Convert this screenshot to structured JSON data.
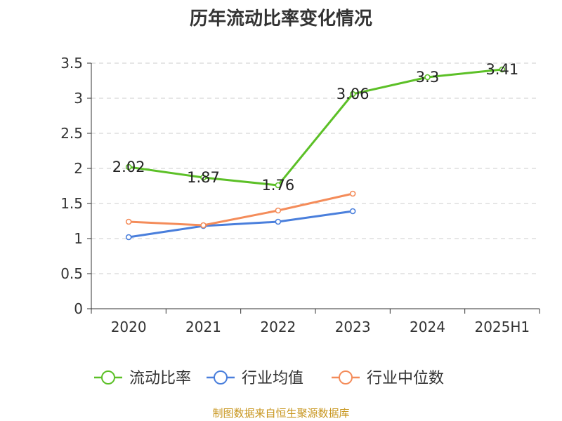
{
  "title": "历年流动比率变化情况",
  "source": "制图数据来自恒生聚源数据库",
  "chart_data": {
    "type": "line",
    "title": "历年流动比率变化情况",
    "categories": [
      "2020",
      "2021",
      "2022",
      "2023",
      "2024",
      "2025H1"
    ],
    "ylim": [
      0,
      3.5
    ],
    "yticks": [
      0,
      0.5,
      1,
      1.5,
      2,
      2.5,
      3,
      3.5
    ],
    "ytick_labels": [
      "0",
      "0.5",
      "1",
      "1.5",
      "2",
      "2.5",
      "3",
      "3.5"
    ],
    "grid": true,
    "legend_position": "bottom",
    "series": [
      {
        "name": "流动比率",
        "color": "#5cc027",
        "values": [
          2.02,
          1.87,
          1.76,
          3.06,
          3.3,
          3.41
        ],
        "labels": [
          "2.02",
          "1.87",
          "1.76",
          "3.06",
          "3.3",
          "3.41"
        ]
      },
      {
        "name": "行业均值",
        "color": "#4a7fdc",
        "values": [
          1.02,
          1.18,
          1.24,
          1.39,
          null,
          null
        ]
      },
      {
        "name": "行业中位数",
        "color": "#f48c5a",
        "values": [
          1.24,
          1.19,
          1.4,
          1.64,
          null,
          null
        ]
      }
    ]
  }
}
